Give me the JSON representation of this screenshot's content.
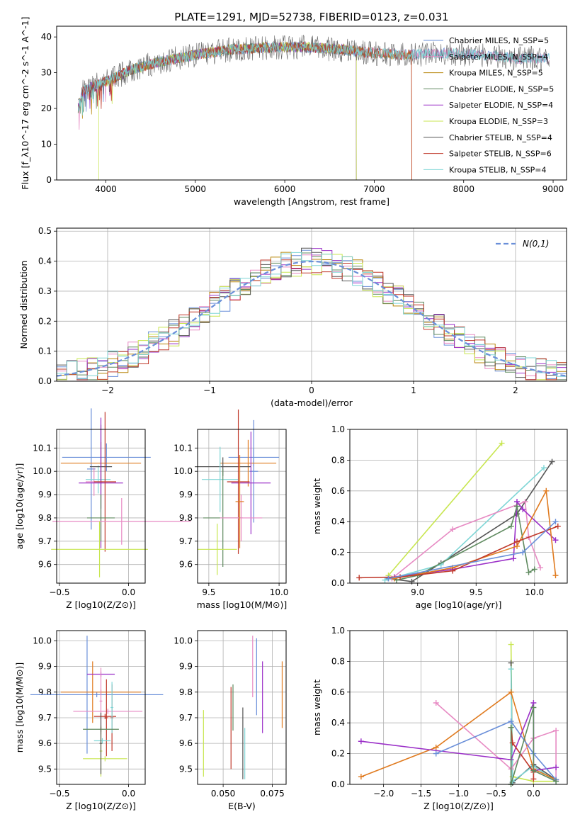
{
  "figure": {
    "title": "PLATE=1291, MJD=52738, FIBERID=0123, z=0.031"
  },
  "chart_data": [
    {
      "type": "line",
      "id": "spectrum",
      "xlabel": "wavelength [Angstrom, rest frame]",
      "ylabel": "Flux [f_λ10^-17 erg cm^-2 s^-1 A^-1]",
      "xlim": [
        3450,
        9150
      ],
      "ylim": [
        0,
        43
      ],
      "xticks": [
        4000,
        5000,
        6000,
        7000,
        8000,
        9000
      ],
      "yticks": [
        0,
        10,
        20,
        30,
        40
      ],
      "legend_position": "top-right",
      "data_x_range": [
        3690,
        8960
      ],
      "continuum": {
        "x": [
          3690,
          3750,
          3850,
          3950,
          4050,
          4300,
          4600,
          5000,
          5400,
          5800,
          6200,
          6600,
          7000,
          7400,
          7800,
          8200,
          8600,
          8960
        ],
        "y": [
          20,
          25,
          26,
          27,
          28,
          31,
          33,
          35,
          36.5,
          37,
          37.2,
          36.5,
          35.5,
          35,
          35.5,
          35,
          34,
          34
        ]
      },
      "series": [
        {
          "name": "Chabrier MILES, N_SSP=5",
          "color": "#6a8fd9",
          "x_range": [
            3690,
            8960
          ]
        },
        {
          "name": "Salpeter MILES, N_SSP=4",
          "color": "#e78ac3",
          "x_range": [
            3690,
            8960
          ]
        },
        {
          "name": "Kroupa MILES, N_SSP=5",
          "color": "#b8860b",
          "x_range": [
            3690,
            7420
          ]
        },
        {
          "name": "Chabrier ELODIE, N_SSP=5",
          "color": "#5f8a5f",
          "x_range": [
            3690,
            6800
          ]
        },
        {
          "name": "Salpeter ELODIE, N_SSP=4",
          "color": "#9b30c8",
          "x_range": [
            3690,
            6800
          ]
        },
        {
          "name": "Kroupa ELODIE, N_SSP=3",
          "color": "#c8e650",
          "x_range": [
            3920,
            6800
          ]
        },
        {
          "name": "Chabrier STELIB, N_SSP=4",
          "color": "#555555",
          "x_range": [
            3690,
            8960
          ]
        },
        {
          "name": "Salpeter STELIB, N_SSP=6",
          "color": "#c0392b",
          "x_range": [
            3690,
            7420
          ]
        },
        {
          "name": "Kroupa STELIB, N_SSP=4",
          "color": "#7fd6d6",
          "x_range": [
            3690,
            8960
          ]
        }
      ]
    },
    {
      "type": "histogram",
      "id": "residuals",
      "xlabel": "(data-model)/error",
      "ylabel": "Normed distribution",
      "xlim": [
        -2.5,
        2.5
      ],
      "ylim": [
        0,
        0.51
      ],
      "xticks": [
        -2,
        -1,
        0,
        1,
        2
      ],
      "yticks": [
        0.0,
        0.1,
        0.2,
        0.3,
        0.4,
        0.5
      ],
      "bin_width": 0.1,
      "legend_position": "top-right",
      "legend_entry": "N(0,1)",
      "gaussian": {
        "mu": 0,
        "sigma": 1,
        "color": "#6a8fd9"
      },
      "series_colors": [
        "#6a8fd9",
        "#e78ac3",
        "#b8860b",
        "#5f8a5f",
        "#9b30c8",
        "#c8e650",
        "#555555",
        "#c0392b",
        "#7fd6d6"
      ]
    },
    {
      "type": "scatter",
      "id": "age-vs-z",
      "xlabel": "Z [log10(Z/Z⊙)]",
      "ylabel": "age [log10(age/yr)]",
      "xlim": [
        -0.52,
        0.12
      ],
      "ylim": [
        9.52,
        10.18
      ],
      "xticks": [
        -0.5,
        0.0
      ],
      "yticks": [
        9.6,
        9.7,
        9.8,
        9.9,
        10.0,
        10.1
      ],
      "points": [
        {
          "x": -0.16,
          "y": 10.06,
          "xerr": 0.32,
          "yerr": 0.06,
          "color": "#6a8fd9"
        },
        {
          "x": -0.27,
          "y": 10.01,
          "xerr": 0.03,
          "yerr": 0.26,
          "color": "#6a8fd9"
        },
        {
          "x": -0.2,
          "y": 10.035,
          "xerr": 0.29,
          "yerr": 0.09,
          "color": "#e07b20"
        },
        {
          "x": -0.25,
          "y": 9.955,
          "xerr": 0.06,
          "yerr": 0.06,
          "color": "#e78ac3"
        },
        {
          "x": -0.22,
          "y": 9.965,
          "xerr": 0.09,
          "yerr": 0.06,
          "color": "#7fd6d6"
        },
        {
          "x": -0.2,
          "y": 10.02,
          "xerr": 0.08,
          "yerr": 0.18,
          "color": "#555555"
        },
        {
          "x": -0.2,
          "y": 9.95,
          "xerr": 0.16,
          "yerr": 0.28,
          "color": "#9b30c8"
        },
        {
          "x": -0.17,
          "y": 9.955,
          "xerr": 0.08,
          "yerr": 0.3,
          "color": "#c0392b"
        },
        {
          "x": -0.2,
          "y": 9.8,
          "xerr": 0.1,
          "yerr": 0.1,
          "color": "#5f8a5f"
        },
        {
          "x": -0.05,
          "y": 9.785,
          "xerr": 0.5,
          "yerr": 0.1,
          "color": "#e78ac3"
        },
        {
          "x": -0.21,
          "y": 9.665,
          "xerr": 0.35,
          "yerr": 0.12,
          "color": "#c8e650"
        }
      ]
    },
    {
      "type": "scatter",
      "id": "age-vs-mass",
      "xlabel": "mass [log10(M/M⊙)]",
      "ylabel": "",
      "xlim": [
        9.42,
        10.05
      ],
      "ylim": [
        9.52,
        10.18
      ],
      "xticks": [
        9.5,
        10.0
      ],
      "yticks": [
        9.6,
        9.7,
        9.8,
        9.9,
        10.0,
        10.1
      ],
      "points": [
        {
          "x": 9.82,
          "y": 10.06,
          "xerr": 0.18,
          "yerr": 0.04,
          "color": "#6a8fd9"
        },
        {
          "x": 9.82,
          "y": 10.0,
          "xerr": 0.03,
          "yerr": 0.22,
          "color": "#6a8fd9"
        },
        {
          "x": 9.78,
          "y": 10.035,
          "xerr": 0.2,
          "yerr": 0.1,
          "color": "#e07b20"
        },
        {
          "x": 9.6,
          "y": 10.02,
          "xerr": 0.2,
          "yerr": 0.04,
          "color": "#555555"
        },
        {
          "x": 9.58,
          "y": 9.965,
          "xerr": 0.13,
          "yerr": 0.14,
          "color": "#7fd6d6"
        },
        {
          "x": 9.8,
          "y": 9.95,
          "xerr": 0.14,
          "yerr": 0.22,
          "color": "#9b30c8"
        },
        {
          "x": 9.71,
          "y": 9.955,
          "xerr": 0.08,
          "yerr": 0.31,
          "color": "#c0392b"
        },
        {
          "x": 9.6,
          "y": 9.8,
          "xerr": 0.14,
          "yerr": 0.21,
          "color": "#5f8a5f"
        },
        {
          "x": 9.73,
          "y": 9.8,
          "xerr": 0.15,
          "yerr": 0.1,
          "color": "#e78ac3"
        },
        {
          "x": 9.56,
          "y": 9.665,
          "xerr": 0.14,
          "yerr": 0.11,
          "color": "#c8e650"
        },
        {
          "x": 9.72,
          "y": 9.87,
          "xerr": 0.03,
          "yerr": 0.2,
          "color": "#e07b20"
        }
      ]
    },
    {
      "type": "line",
      "id": "mass-weight-vs-age",
      "xlabel": "age [log10(age/yr)]",
      "ylabel": "mass weight",
      "xlim": [
        8.42,
        10.28
      ],
      "ylim": [
        0.0,
        1.0
      ],
      "xticks": [
        9.0,
        9.5,
        10.0
      ],
      "yticks": [
        0.0,
        0.2,
        0.4,
        0.6,
        0.8,
        1.0
      ],
      "series": [
        {
          "color": "#c8e650",
          "x": [
            8.75,
            9.72
          ],
          "y": [
            0.05,
            0.91
          ]
        },
        {
          "color": "#555555",
          "x": [
            8.75,
            8.95,
            9.2,
            9.85,
            10.15
          ],
          "y": [
            0.03,
            0.01,
            0.13,
            0.45,
            0.79
          ]
        },
        {
          "color": "#7fd6d6",
          "x": [
            8.72,
            9.2,
            10.08
          ],
          "y": [
            0.02,
            0.12,
            0.75
          ]
        },
        {
          "color": "#e78ac3",
          "x": [
            8.78,
            9.3,
            9.92,
            9.95,
            10.05
          ],
          "y": [
            0.03,
            0.35,
            0.53,
            0.3,
            0.1
          ]
        },
        {
          "color": "#9b30c8",
          "x": [
            8.8,
            9.3,
            9.82,
            9.85,
            9.9,
            10.18
          ],
          "y": [
            0.04,
            0.09,
            0.16,
            0.53,
            0.48,
            0.28
          ]
        },
        {
          "color": "#5f8a5f",
          "x": [
            8.82,
            9.0,
            9.8,
            9.85,
            9.95,
            10.0
          ],
          "y": [
            0.02,
            0.05,
            0.37,
            0.5,
            0.07,
            0.09
          ]
        },
        {
          "color": "#e07b20",
          "x": [
            8.8,
            9.3,
            9.85,
            10.1,
            10.18
          ],
          "y": [
            0.03,
            0.1,
            0.24,
            0.6,
            0.05
          ]
        },
        {
          "color": "#c0392b",
          "x": [
            8.5,
            8.85,
            9.3,
            9.85,
            10.2
          ],
          "y": [
            0.035,
            0.04,
            0.08,
            0.27,
            0.37
          ]
        },
        {
          "color": "#6a8fd9",
          "x": [
            8.75,
            9.9,
            10.18
          ],
          "y": [
            0.03,
            0.2,
            0.4
          ]
        }
      ]
    },
    {
      "type": "scatter",
      "id": "mass-vs-z",
      "xlabel": "Z [log10(Z/Z⊙)]",
      "ylabel": "mass [log10(M/M⊙)]",
      "xlim": [
        -0.52,
        0.12
      ],
      "ylim": [
        9.44,
        10.04
      ],
      "xticks": [
        -0.5,
        0.0
      ],
      "yticks": [
        9.5,
        9.6,
        9.7,
        9.8,
        9.9,
        10.0
      ],
      "points": [
        {
          "x": -0.3,
          "y": 9.79,
          "xerr": 0.01,
          "yerr": 0.23,
          "color": "#6a8fd9"
        },
        {
          "x": -0.23,
          "y": 9.79,
          "xerr": 0.48,
          "yerr": 0.01,
          "color": "#6a8fd9"
        },
        {
          "x": -0.26,
          "y": 9.8,
          "xerr": 0.01,
          "yerr": 0.12,
          "color": "#e07b20"
        },
        {
          "x": -0.2,
          "y": 9.8,
          "xerr": 0.29,
          "yerr": 0.01,
          "color": "#e07b20"
        },
        {
          "x": -0.2,
          "y": 9.87,
          "xerr": 0.1,
          "yerr": 0.01,
          "color": "#9b30c8"
        },
        {
          "x": -0.2,
          "y": 9.765,
          "xerr": 0.01,
          "yerr": 0.13,
          "color": "#e78ac3"
        },
        {
          "x": -0.15,
          "y": 9.725,
          "xerr": 0.25,
          "yerr": 0.01,
          "color": "#e78ac3"
        },
        {
          "x": -0.16,
          "y": 9.7,
          "xerr": 0.01,
          "yerr": 0.15,
          "color": "#c0392b"
        },
        {
          "x": -0.17,
          "y": 9.705,
          "xerr": 0.08,
          "yerr": 0.01,
          "color": "#c0392b"
        },
        {
          "x": -0.12,
          "y": 9.7,
          "xerr": 0.01,
          "yerr": 0.13,
          "color": "#c0392b"
        },
        {
          "x": -0.12,
          "y": 9.74,
          "xerr": 0.01,
          "yerr": 0.1,
          "color": "#7fd6d6"
        },
        {
          "x": -0.2,
          "y": 9.655,
          "xerr": 0.13,
          "yerr": 0.01,
          "color": "#5f8a5f"
        },
        {
          "x": -0.19,
          "y": 9.61,
          "xerr": 0.06,
          "yerr": 0.01,
          "color": "#7fd6d6"
        },
        {
          "x": -0.2,
          "y": 9.57,
          "xerr": 0.01,
          "yerr": 0.1,
          "color": "#c8e650"
        },
        {
          "x": -0.17,
          "y": 9.54,
          "xerr": 0.16,
          "yerr": 0.01,
          "color": "#c8e650"
        },
        {
          "x": -0.2,
          "y": 9.6,
          "xerr": 0.01,
          "yerr": 0.12,
          "color": "#555555"
        }
      ]
    },
    {
      "type": "scatter",
      "id": "mass-vs-ebv",
      "xlabel": "E(B-V)",
      "ylabel": "",
      "xlim": [
        0.037,
        0.082
      ],
      "ylim": [
        9.44,
        10.04
      ],
      "xticks": [
        0.05,
        0.075
      ],
      "yticks": [
        9.5,
        9.6,
        9.7,
        9.8,
        9.9,
        10.0
      ],
      "points": [
        {
          "x": 0.04,
          "y": 9.6,
          "yerr": 0.13,
          "color": "#c8e650"
        },
        {
          "x": 0.054,
          "y": 9.66,
          "yerr": 0.16,
          "color": "#c0392b"
        },
        {
          "x": 0.055,
          "y": 9.74,
          "yerr": 0.09,
          "color": "#5f8a5f"
        },
        {
          "x": 0.06,
          "y": 9.6,
          "yerr": 0.14,
          "color": "#555555"
        },
        {
          "x": 0.061,
          "y": 9.56,
          "yerr": 0.1,
          "color": "#7fd6d6"
        },
        {
          "x": 0.065,
          "y": 9.9,
          "yerr": 0.12,
          "color": "#e78ac3"
        },
        {
          "x": 0.067,
          "y": 9.86,
          "yerr": 0.15,
          "color": "#6a8fd9"
        },
        {
          "x": 0.07,
          "y": 9.78,
          "yerr": 0.14,
          "color": "#9b30c8"
        },
        {
          "x": 0.08,
          "y": 9.79,
          "yerr": 0.13,
          "color": "#e07b20"
        }
      ]
    },
    {
      "type": "line",
      "id": "mass-weight-vs-z",
      "xlabel": "Z [log10(Z/Z⊙)]",
      "ylabel": "mass weight",
      "xlim": [
        -2.45,
        0.45
      ],
      "ylim": [
        0.0,
        1.0
      ],
      "xticks": [
        -2.0,
        -1.5,
        -1.0,
        -0.5,
        0.0
      ],
      "yticks": [
        0.0,
        0.2,
        0.4,
        0.6,
        0.8,
        1.0
      ],
      "series": [
        {
          "color": "#c8e650",
          "x": [
            -0.3,
            -0.28,
            0.0,
            0.3
          ],
          "y": [
            0.91,
            0.05,
            0.02,
            0.02
          ]
        },
        {
          "color": "#555555",
          "x": [
            -0.3,
            -0.28,
            0.0,
            0.3
          ],
          "y": [
            0.79,
            0.01,
            0.13,
            0.03
          ]
        },
        {
          "color": "#7fd6d6",
          "x": [
            -0.3,
            -0.28,
            0.0,
            0.3
          ],
          "y": [
            0.75,
            0.02,
            0.12,
            0.02
          ]
        },
        {
          "color": "#e07b20",
          "x": [
            -2.3,
            -1.3,
            -0.3,
            0.0,
            0.3
          ],
          "y": [
            0.05,
            0.24,
            0.6,
            0.1,
            0.03
          ]
        },
        {
          "color": "#e78ac3",
          "x": [
            -1.3,
            -0.3,
            0.0,
            0.3,
            0.3
          ],
          "y": [
            0.53,
            0.1,
            0.3,
            0.35,
            0.03
          ]
        },
        {
          "color": "#9b30c8",
          "x": [
            -2.3,
            -0.3,
            0.0,
            0.0,
            0.3
          ],
          "y": [
            0.28,
            0.16,
            0.53,
            0.09,
            0.11
          ]
        },
        {
          "color": "#6a8fd9",
          "x": [
            -1.3,
            -0.3,
            0.0,
            0.3
          ],
          "y": [
            0.2,
            0.41,
            0.2,
            0.03
          ]
        },
        {
          "color": "#c0392b",
          "x": [
            -0.3,
            -0.28,
            0.0,
            0.0
          ],
          "y": [
            0.37,
            0.27,
            0.08,
            0.035
          ]
        },
        {
          "color": "#5f8a5f",
          "x": [
            -0.3,
            -0.3,
            0.0,
            0.0,
            0.3
          ],
          "y": [
            0.37,
            0.0,
            0.5,
            0.09,
            0.02
          ]
        }
      ]
    }
  ]
}
